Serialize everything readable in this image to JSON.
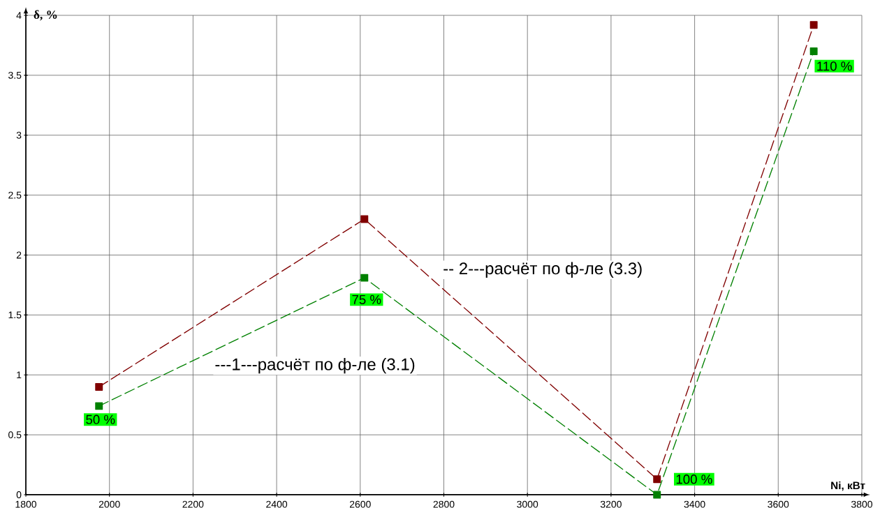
{
  "chart_data": {
    "type": "line",
    "xlabel": "Ni, кВт",
    "ylabel": "δ, %",
    "x": [
      1975,
      2610,
      3310,
      3685
    ],
    "series": [
      {
        "name": "---1---расчёт по ф-ле (3.1)",
        "color": "#008000",
        "values": [
          0.74,
          1.81,
          0,
          3.7
        ]
      },
      {
        "name": "-- 2---расчёт по ф-ле (3.3)",
        "color": "#800000",
        "values": [
          0.9,
          2.3,
          0.13,
          3.92
        ]
      }
    ],
    "annotations": [
      {
        "text": "50 %",
        "x": 1975,
        "y": 0.74
      },
      {
        "text": "75 %",
        "x": 2610,
        "y": 1.81
      },
      {
        "text": "100 %",
        "x": 3310,
        "y": 0
      },
      {
        "text": "110 %",
        "x": 3685,
        "y": 3.7
      }
    ],
    "xlim": [
      1800,
      3800
    ],
    "xticks": [
      1800,
      2000,
      2200,
      2400,
      2600,
      2800,
      3000,
      3200,
      3400,
      3600,
      3800
    ],
    "ylim": [
      0,
      4
    ],
    "yticks": [
      0,
      0.5,
      1,
      1.5,
      2,
      2.5,
      3,
      3.5,
      4
    ],
    "grid": true,
    "marker": "square",
    "line_style": "dashed"
  }
}
